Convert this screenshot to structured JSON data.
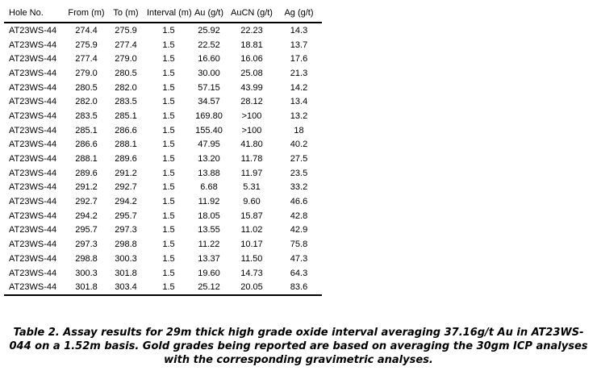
{
  "table": {
    "columns": [
      "Hole No.",
      "From (m)",
      "To (m)",
      "Interval (m)",
      "Au (g/t)",
      "AuCN (g/t)",
      "Ag (g/t)"
    ],
    "rows": [
      [
        "AT23WS-44",
        "274.4",
        "275.9",
        "1.5",
        "25.92",
        "22.23",
        "14.3"
      ],
      [
        "AT23WS-44",
        "275.9",
        "277.4",
        "1.5",
        "22.52",
        "18.81",
        "13.7"
      ],
      [
        "AT23WS-44",
        "277.4",
        "279.0",
        "1.5",
        "16.60",
        "16.06",
        "17.6"
      ],
      [
        "AT23WS-44",
        "279.0",
        "280.5",
        "1.5",
        "30.00",
        "25.08",
        "21.3"
      ],
      [
        "AT23WS-44",
        "280.5",
        "282.0",
        "1.5",
        "57.15",
        "43.99",
        "14.2"
      ],
      [
        "AT23WS-44",
        "282.0",
        "283.5",
        "1.5",
        "34.57",
        "28.12",
        "13.4"
      ],
      [
        "AT23WS-44",
        "283.5",
        "285.1",
        "1.5",
        "169.80",
        ">100",
        "13.2"
      ],
      [
        "AT23WS-44",
        "285.1",
        "286.6",
        "1.5",
        "155.40",
        ">100",
        "18"
      ],
      [
        "AT23WS-44",
        "286.6",
        "288.1",
        "1.5",
        "47.95",
        "41.80",
        "40.2"
      ],
      [
        "AT23WS-44",
        "288.1",
        "289.6",
        "1.5",
        "13.20",
        "11.78",
        "27.5"
      ],
      [
        "AT23WS-44",
        "289.6",
        "291.2",
        "1.5",
        "13.88",
        "11.97",
        "23.5"
      ],
      [
        "AT23WS-44",
        "291.2",
        "292.7",
        "1.5",
        "6.68",
        "5.31",
        "33.2"
      ],
      [
        "AT23WS-44",
        "292.7",
        "294.2",
        "1.5",
        "11.92",
        "9.60",
        "46.6"
      ],
      [
        "AT23WS-44",
        "294.2",
        "295.7",
        "1.5",
        "18.05",
        "15.87",
        "42.8"
      ],
      [
        "AT23WS-44",
        "295.7",
        "297.3",
        "1.5",
        "13.55",
        "11.02",
        "42.9"
      ],
      [
        "AT23WS-44",
        "297.3",
        "298.8",
        "1.5",
        "11.22",
        "10.17",
        "75.8"
      ],
      [
        "AT23WS-44",
        "298.8",
        "300.3",
        "1.5",
        "13.37",
        "11.50",
        "47.3"
      ],
      [
        "AT23WS-44",
        "300.3",
        "301.8",
        "1.5",
        "19.60",
        "14.73",
        "64.3"
      ],
      [
        "AT23WS-44",
        "301.8",
        "303.4",
        "1.5",
        "25.12",
        "20.05",
        "83.6"
      ]
    ]
  },
  "caption": {
    "lines": [
      "Table 2. Assay results for 29m thick high grade oxide interval averaging 37.16g/t Au in AT23WS-",
      "044 on a 1.52m basis. Gold grades being reported are based on averaging the 30gm ICP analyses",
      "with the corresponding gravimetric analyses."
    ]
  },
  "colors": {
    "background": "#ffffff",
    "text": "#000000",
    "rule": "#000000"
  }
}
